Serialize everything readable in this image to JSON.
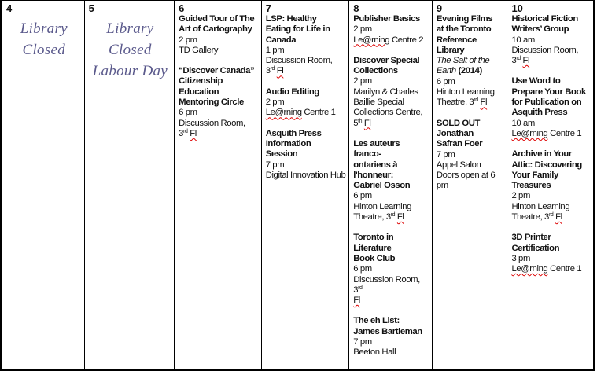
{
  "days": [
    {
      "number": "4",
      "closed": [
        "Library",
        "Closed"
      ],
      "events": []
    },
    {
      "number": "5",
      "closed": [
        "Library",
        "Closed",
        "Labour Day"
      ],
      "events": []
    },
    {
      "number": "6",
      "events": [
        {
          "title": [
            "Guided Tour of The",
            "Art of Cartography"
          ],
          "time": "2 pm",
          "loc": "TD Gallery"
        },
        {
          "title": [
            "“Discover Canada”",
            "Citizenship",
            "Education",
            "Mentoring Circle"
          ],
          "time": "6 pm",
          "loc": "Discussion Room,",
          "loc2": "3",
          "loc2_sup": "rd",
          "loc2_after": "Fl"
        }
      ]
    },
    {
      "number": "7",
      "events": [
        {
          "title": [
            "LSP: Healthy",
            "Eating for Life in",
            "Canada"
          ],
          "time": "1 pm",
          "loc": "Discussion Room,",
          "loc2": "3",
          "loc2_sup": "rd",
          "loc2_after": "Fl"
        },
        {
          "title": [
            "Audio Editing"
          ],
          "time": "2 pm",
          "loc_sq": "Le@rning",
          "loc": " Centre 1"
        },
        {
          "title": [
            "Asquith Press",
            "Information",
            "Session"
          ],
          "time": "7 pm",
          "loc": "Digital Innovation Hub"
        }
      ]
    },
    {
      "number": "8",
      "events": [
        {
          "title": [
            "Publisher Basics"
          ],
          "time": "2 pm",
          "loc_sq": "Le@rning",
          "loc": " Centre 2"
        },
        {
          "title": [
            "Discover Special",
            "Collections"
          ],
          "time": "2 pm",
          "loc": "Marilyn & Charles Baillie Special Collections Centre,",
          "loc2": "5",
          "loc2_sup": "th",
          "loc2_after": "Fl"
        },
        {
          "title": [
            "Les auteurs franco-",
            "ontariens à",
            "l'honneur:",
            "Gabriel Osson"
          ],
          "time": "6 pm",
          "loc": "Hinton Learning Theatre, 3",
          "loc_sup": "rd",
          "loc_after": "Fl"
        },
        {
          "title": [
            "Toronto in",
            "Literature",
            "Book Club"
          ],
          "time": "6 pm",
          "loc": "Discussion Room, 3",
          "loc_sup": "rd",
          "loc2_after": "Fl"
        },
        {
          "title": [
            "The eh List:",
            "James Bartleman"
          ],
          "time": "7 pm",
          "loc": "Beeton Hall"
        }
      ]
    },
    {
      "number": "9",
      "events": [
        {
          "title": [
            "Evening Films",
            "at the Toronto",
            "Reference",
            "Library"
          ],
          "subtitle_italic": "The Salt of the Earth",
          "subtitle_year": " (2014)",
          "time": "6 pm",
          "loc": "Hinton Learning Theatre, 3",
          "loc_sup": "rd",
          "loc_after": "Fl"
        },
        {
          "title": [
            "SOLD OUT",
            "Jonathan",
            "Safran Foer"
          ],
          "time": "7 pm",
          "loc": "Appel Salon",
          "note": "Doors open at 6 pm"
        }
      ]
    },
    {
      "number": "10",
      "events": [
        {
          "title": [
            "Historical Fiction",
            "Writers’ Group"
          ],
          "time": "10 am",
          "loc": "Discussion Room,",
          "loc2": "3",
          "loc2_sup": "rd",
          "loc2_after": "Fl"
        },
        {
          "title": [
            "Use Word to",
            "Prepare Your Book",
            "for Publication on",
            "Asquith Press"
          ],
          "time": "10 am",
          "loc_sq": "Le@rning",
          "loc": " Centre 1"
        },
        {
          "title": [
            "Archive in Your",
            "Attic: Discovering",
            "Your Family",
            "Treasures"
          ],
          "time": "2 pm",
          "loc": "Hinton Learning Theatre, 3",
          "loc_sup": "rd",
          "loc_after": "Fl"
        },
        {
          "title": [
            "3D Printer",
            "Certification"
          ],
          "time": "3 pm",
          "loc_sq": "Le@rning",
          "loc": " Centre 1"
        }
      ]
    }
  ]
}
